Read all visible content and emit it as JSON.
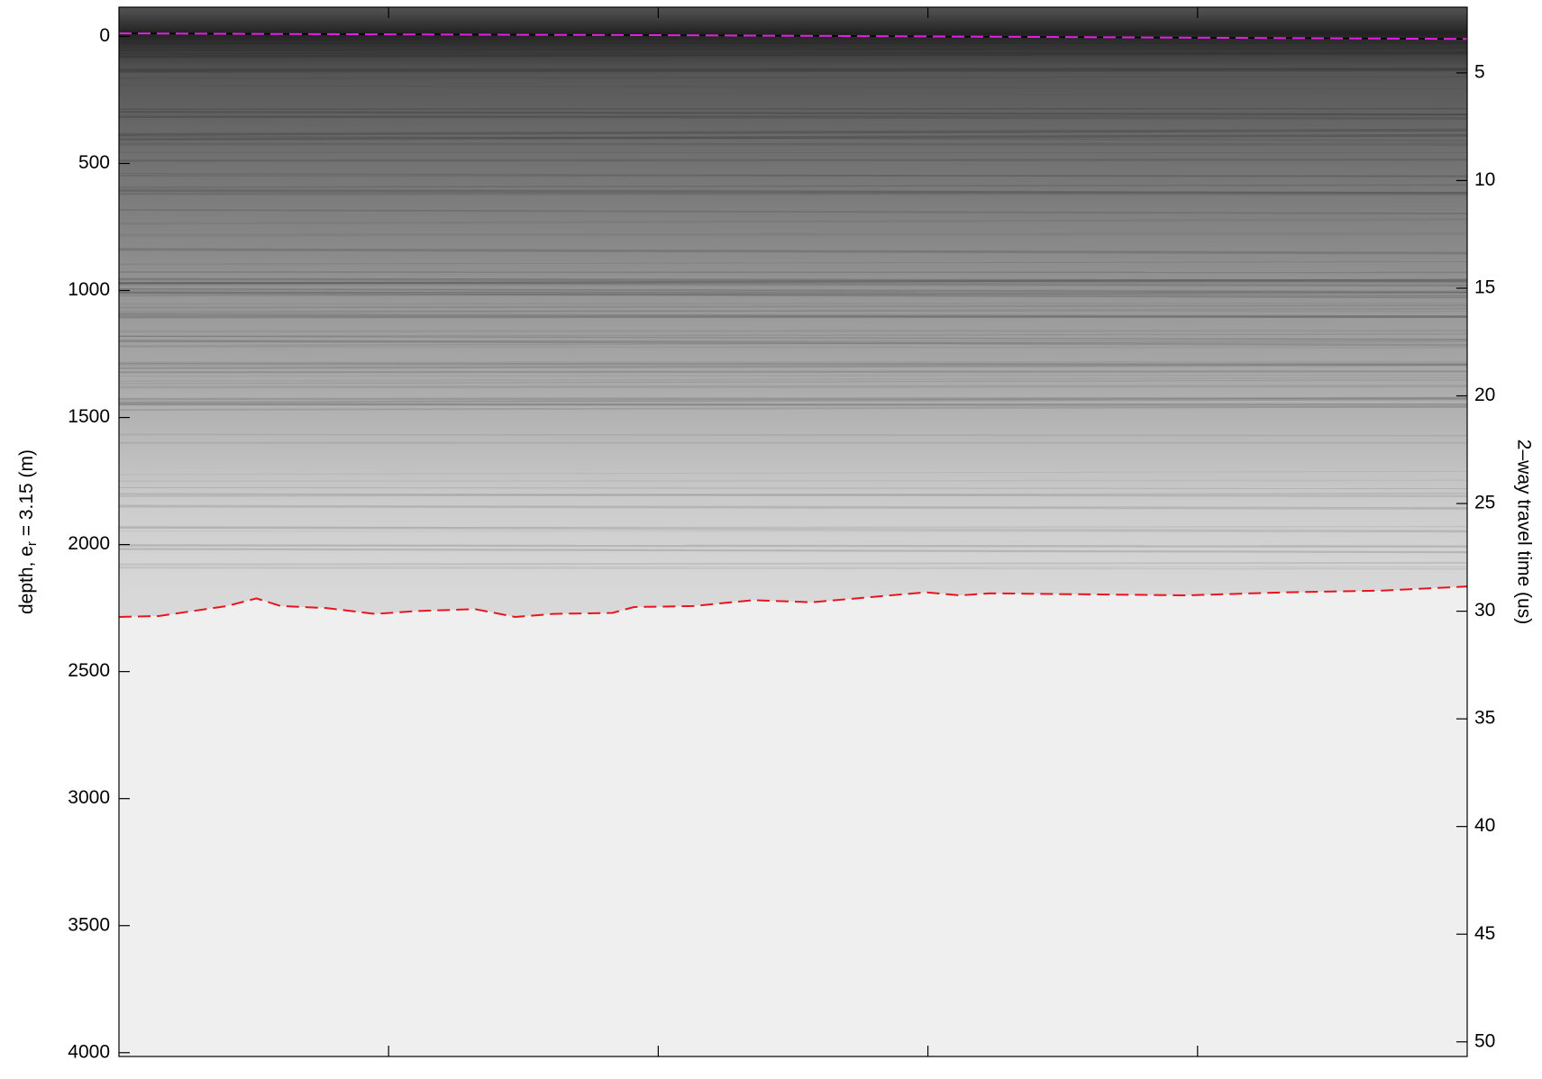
{
  "chart_data": {
    "type": "line",
    "ylabel": {
      "text": "depth, e",
      "sub": "r",
      "rest": " = 3.15 (m)"
    },
    "y2label": "2–way travel time (us)",
    "xlim": [
      0,
      5
    ],
    "xticks": [
      1,
      2,
      3,
      4
    ],
    "ylim": [
      -115,
      4015
    ],
    "yinvert": true,
    "yticks": [
      0,
      500,
      1000,
      1500,
      2000,
      2500,
      3000,
      3500,
      4000
    ],
    "y2lim": [
      1.95,
      50.68
    ],
    "y2invert": true,
    "y2ticks": [
      5,
      10,
      15,
      20,
      25,
      30,
      35,
      40,
      45,
      50
    ],
    "series": [
      {
        "name": "surface",
        "color": "#e020e0",
        "x": [
          0,
          1,
          2,
          3,
          4,
          5
        ],
        "values": [
          -12,
          -8,
          -5,
          0,
          5,
          10
        ]
      },
      {
        "name": "bed",
        "color": "#e8141e",
        "x": [
          0,
          0.15,
          0.4,
          0.51,
          0.6,
          0.77,
          0.95,
          1.1,
          1.32,
          1.47,
          1.61,
          1.83,
          1.91,
          2.13,
          2.35,
          2.57,
          2.82,
          2.99,
          3.12,
          3.23,
          3.59,
          3.96,
          4.33,
          4.69,
          5
        ],
        "values": [
          2285,
          2281,
          2242,
          2212,
          2242,
          2250,
          2273,
          2262,
          2254,
          2285,
          2273,
          2269,
          2246,
          2242,
          2219,
          2227,
          2204,
          2188,
          2200,
          2192,
          2196,
          2200,
          2188,
          2181,
          2165
        ]
      }
    ]
  }
}
